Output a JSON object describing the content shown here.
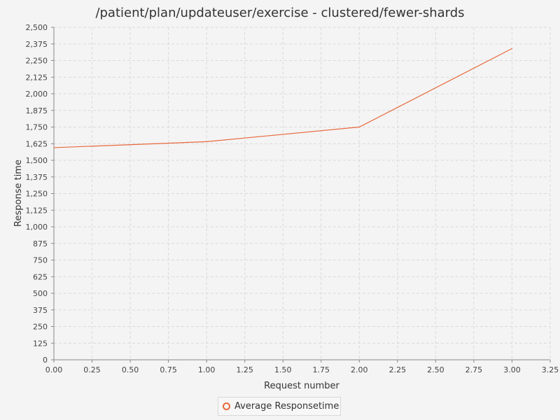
{
  "chart_data": {
    "type": "line",
    "title": "/patient/plan/updateuser/exercise - clustered/fewer-shards",
    "xlabel": "Request number",
    "ylabel": "Response time",
    "xlim": [
      0,
      3.25
    ],
    "ylim": [
      0,
      2500
    ],
    "x_ticks": [
      "0.00",
      "0.25",
      "0.50",
      "0.75",
      "1.00",
      "1.25",
      "1.50",
      "1.75",
      "2.00",
      "2.25",
      "2.50",
      "2.75",
      "3.00",
      "3.25"
    ],
    "y_ticks": [
      "0",
      "125",
      "250",
      "375",
      "500",
      "625",
      "750",
      "875",
      "1,000",
      "1,125",
      "1,250",
      "1,375",
      "1,500",
      "1,625",
      "1,750",
      "1,875",
      "2,000",
      "2,125",
      "2,250",
      "2,375",
      "2,500"
    ],
    "grid": true,
    "legend_position": "bottom",
    "series": [
      {
        "name": "Average Responsetime",
        "color": "#e8693c",
        "x": [
          0,
          1,
          2,
          3
        ],
        "values": [
          1595,
          1640,
          1750,
          2340
        ]
      }
    ]
  }
}
